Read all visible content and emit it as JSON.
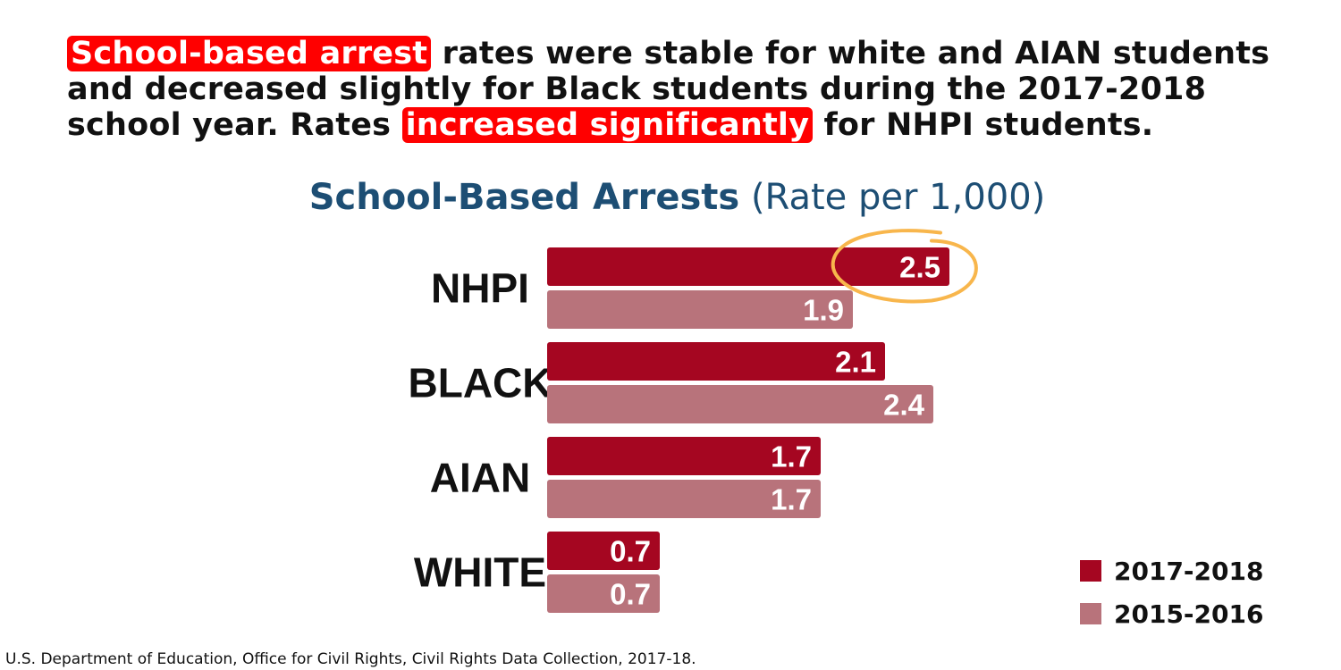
{
  "headline": {
    "highlight1": "School-based arrest",
    "text1": " rates were stable for white and AIAN students",
    "text2": "and decreased slightly for Black students during the 2017-2018",
    "text3": "school year. Rates ",
    "highlight2": "increased significantly",
    "text4": " for NHPI students."
  },
  "chart_data": {
    "type": "bar",
    "orientation": "horizontal",
    "title": "School-Based Arrests",
    "title_unit": "(Rate per 1,000)",
    "categories": [
      "NHPI",
      "BLACK",
      "AIAN",
      "WHITE"
    ],
    "series": [
      {
        "name": "2017-2018",
        "color": "#a50621",
        "values": [
          2.5,
          2.1,
          1.7,
          0.7
        ]
      },
      {
        "name": "2015-2016",
        "color": "#b8737b",
        "values": [
          1.9,
          2.4,
          1.7,
          0.7
        ]
      }
    ],
    "xlim": [
      0,
      2.5
    ],
    "grid": false,
    "legend_position": "bottom-right",
    "annotation": {
      "type": "circle",
      "series": "2017-2018",
      "category": "NHPI",
      "color": "#f8b64c"
    }
  },
  "source": "U.S. Department of Education, Office for Civil Rights, Civil Rights Data Collection, 2017-18."
}
